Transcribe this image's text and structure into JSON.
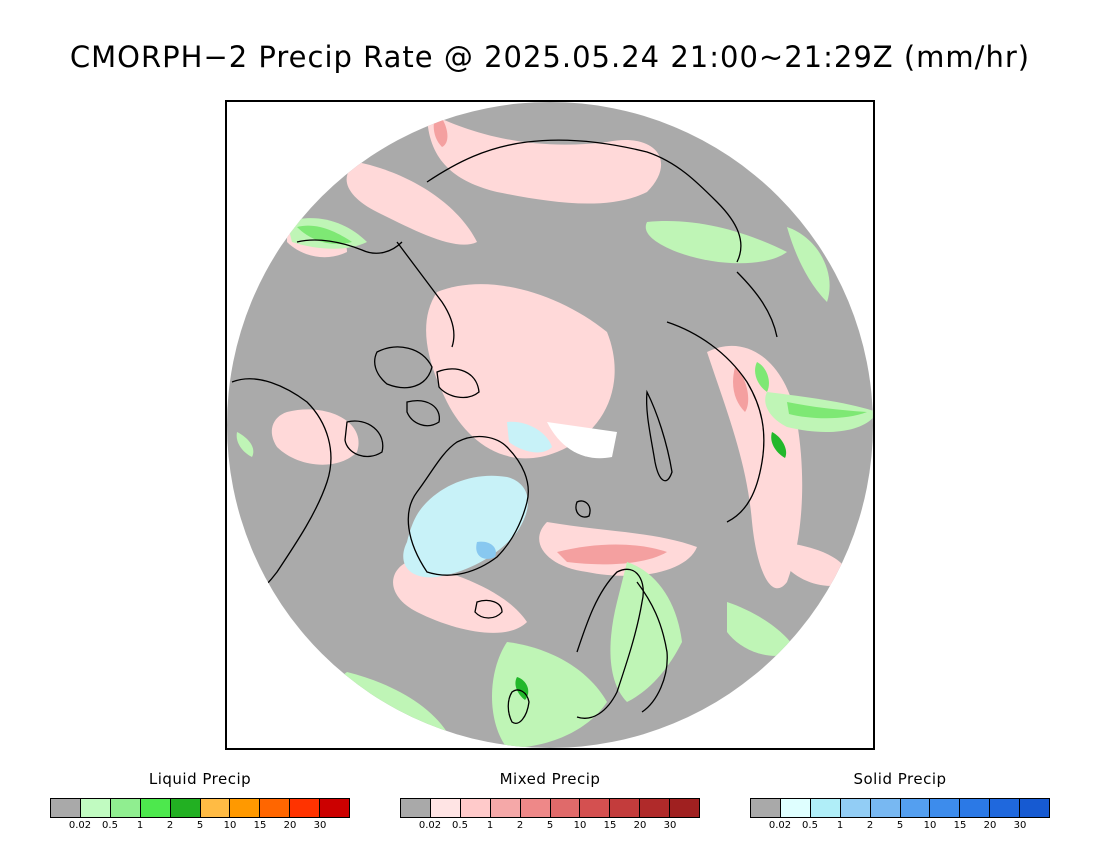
{
  "title": "CMORPH−2 Precip Rate @ 2025.05.24 21:00~21:29Z (mm/hr)",
  "map": {
    "projection": "polar-stereographic",
    "colors": {
      "no_precip": "#aaaaaa",
      "outside": "#ffffff",
      "coastline": "#000000",
      "mixed_light": "#ffd9d9",
      "mixed_mid": "#f4a0a0",
      "liquid_light": "#bff5b6",
      "liquid_mid": "#7ee874",
      "liquid_heavy": "#22b82b",
      "solid_light": "#c8f2f8",
      "solid_mid": "#88c8f0",
      "no_data": "#ffffff"
    }
  },
  "legends": [
    {
      "id": "liquid",
      "title": "Liquid Precip",
      "colors": [
        "#a9a9a9",
        "#c1fbc1",
        "#90ee90",
        "#4de84d",
        "#22b022",
        "#ffbb44",
        "#ff9900",
        "#ff6600",
        "#ff3300",
        "#cc0000"
      ],
      "ticks": [
        "0.02",
        "0.5",
        "1",
        "2",
        "5",
        "10",
        "15",
        "20",
        "30"
      ]
    },
    {
      "id": "mixed",
      "title": "Mixed Precip",
      "colors": [
        "#a9a9a9",
        "#ffe4e4",
        "#ffcaca",
        "#f5a8a8",
        "#ee8888",
        "#e06a6a",
        "#d45050",
        "#c33c3c",
        "#b02a2a",
        "#a02020"
      ],
      "ticks": [
        "0.02",
        "0.5",
        "1",
        "2",
        "5",
        "10",
        "15",
        "20",
        "30"
      ]
    },
    {
      "id": "solid",
      "title": "Solid Precip",
      "colors": [
        "#a9a9a9",
        "#dfffff",
        "#b0eef8",
        "#92cdf5",
        "#78b8f2",
        "#549ff0",
        "#3d8cec",
        "#2b79e6",
        "#1f68dd",
        "#165ad2"
      ],
      "ticks": [
        "0.02",
        "0.5",
        "1",
        "2",
        "5",
        "10",
        "15",
        "20",
        "30"
      ]
    }
  ]
}
